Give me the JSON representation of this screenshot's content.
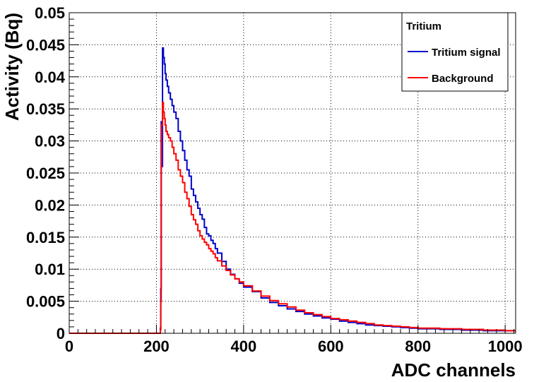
{
  "chart_data": {
    "type": "line",
    "title": "",
    "xlabel": "ADC channels",
    "ylabel": "Activity (Bq)",
    "xlim": [
      0,
      1024
    ],
    "ylim": [
      0,
      0.05
    ],
    "x_ticks": [
      0,
      200,
      400,
      600,
      800,
      1000
    ],
    "x_tick_labels": [
      "0",
      "200",
      "400",
      "600",
      "800",
      "1000"
    ],
    "y_ticks": [
      0,
      0.005,
      0.01,
      0.015,
      0.02,
      0.025,
      0.03,
      0.035,
      0.04,
      0.045,
      0.05
    ],
    "y_tick_labels": [
      "0",
      "0.005",
      "0.01",
      "0.015",
      "0.02",
      "0.025",
      "0.03",
      "0.035",
      "0.04",
      "0.045",
      "0.05"
    ],
    "grid": true,
    "legend": {
      "title": "Tritium",
      "position": "top-right",
      "entries": [
        "Tritium signal",
        "Background"
      ]
    },
    "series": [
      {
        "name": "Tritium signal",
        "color": "#0000cc",
        "x": [
          0,
          200,
          208,
          209,
          210,
          211,
          212,
          214,
          216,
          218,
          220,
          222,
          225,
          228,
          232,
          236,
          240,
          245,
          250,
          255,
          260,
          265,
          270,
          275,
          280,
          285,
          290,
          295,
          300,
          305,
          310,
          315,
          320,
          325,
          330,
          335,
          340,
          350,
          360,
          370,
          380,
          390,
          400,
          420,
          440,
          460,
          480,
          500,
          520,
          540,
          560,
          580,
          600,
          620,
          640,
          660,
          680,
          700,
          720,
          740,
          760,
          780,
          800,
          850,
          900,
          950,
          1000,
          1024
        ],
        "y": [
          0,
          0,
          0,
          0.0008,
          0.007,
          0.033,
          0.026,
          0.0445,
          0.043,
          0.042,
          0.0405,
          0.0395,
          0.0385,
          0.0375,
          0.0365,
          0.0355,
          0.0345,
          0.0335,
          0.0315,
          0.03,
          0.0285,
          0.027,
          0.0255,
          0.0245,
          0.0225,
          0.0215,
          0.0205,
          0.0195,
          0.0185,
          0.0178,
          0.0165,
          0.0155,
          0.0152,
          0.0145,
          0.014,
          0.0132,
          0.0125,
          0.0112,
          0.01,
          0.0092,
          0.0085,
          0.0078,
          0.0072,
          0.0065,
          0.0055,
          0.0048,
          0.0043,
          0.0038,
          0.0034,
          0.003,
          0.0027,
          0.0024,
          0.0022,
          0.0019,
          0.0017,
          0.0015,
          0.0013,
          0.0012,
          0.0011,
          0.001,
          0.0009,
          0.0008,
          0.0007,
          0.0006,
          0.0005,
          0.0004,
          0.0004,
          0.0004
        ]
      },
      {
        "name": "Background",
        "color": "#ff0000",
        "x": [
          0,
          200,
          208,
          209,
          210,
          211,
          212,
          214,
          216,
          218,
          220,
          222,
          225,
          228,
          232,
          236,
          240,
          245,
          250,
          255,
          260,
          265,
          270,
          275,
          280,
          285,
          290,
          295,
          300,
          305,
          310,
          315,
          320,
          325,
          330,
          335,
          340,
          350,
          360,
          370,
          380,
          390,
          400,
          420,
          440,
          460,
          480,
          500,
          520,
          540,
          560,
          580,
          600,
          620,
          640,
          660,
          680,
          700,
          720,
          740,
          760,
          780,
          800,
          850,
          900,
          950,
          1000,
          1024
        ],
        "y": [
          0,
          0,
          0,
          0.0005,
          0.005,
          0.026,
          0.0325,
          0.036,
          0.0345,
          0.0335,
          0.0325,
          0.0315,
          0.031,
          0.0305,
          0.03,
          0.029,
          0.028,
          0.027,
          0.0255,
          0.0245,
          0.0235,
          0.022,
          0.021,
          0.0198,
          0.0185,
          0.0177,
          0.017,
          0.016,
          0.0152,
          0.0147,
          0.0142,
          0.0138,
          0.0132,
          0.0128,
          0.0124,
          0.0118,
          0.0113,
          0.0105,
          0.0098,
          0.0091,
          0.0085,
          0.008,
          0.0074,
          0.0066,
          0.0058,
          0.0051,
          0.0046,
          0.0041,
          0.0036,
          0.0032,
          0.0029,
          0.0026,
          0.0023,
          0.0021,
          0.0019,
          0.0017,
          0.0015,
          0.0013,
          0.0012,
          0.0011,
          0.001,
          0.0009,
          0.0008,
          0.0007,
          0.0006,
          0.0005,
          0.0004,
          0.0004
        ]
      }
    ]
  }
}
